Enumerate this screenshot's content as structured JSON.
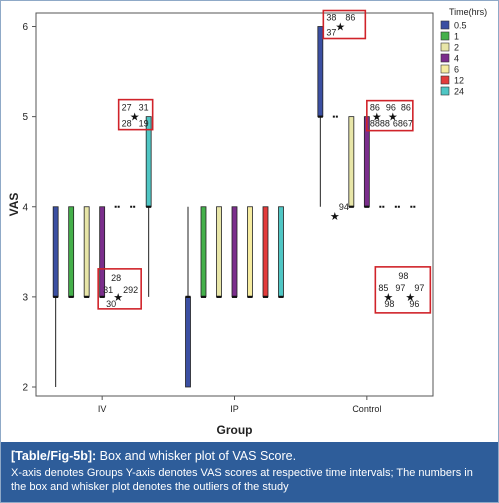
{
  "chart_data": {
    "type": "box",
    "xlabel": "Group",
    "ylabel": "VAS",
    "yticks": [
      2,
      3,
      4,
      5,
      6
    ],
    "ylim": [
      1.9,
      6.15
    ],
    "categories": [
      "IV",
      "IP",
      "Control"
    ],
    "legend": {
      "title": "Time(hrs)",
      "placement": "top-right",
      "items": [
        {
          "name": "0.5",
          "color": "#3b4fa2"
        },
        {
          "name": "1",
          "color": "#44b04a"
        },
        {
          "name": "2",
          "color": "#e8e6a8"
        },
        {
          "name": "4",
          "color": "#7b2e8c"
        },
        {
          "name": "6",
          "color": "#f6eca0"
        },
        {
          "name": "12",
          "color": "#e23b3b"
        },
        {
          "name": "24",
          "color": "#4fc6c4"
        }
      ]
    },
    "boxes": [
      {
        "group": "IV",
        "time": "0.5",
        "min": 2,
        "q1": 3,
        "median": 3,
        "q3": 4,
        "max": 4
      },
      {
        "group": "IV",
        "time": "1",
        "min": 3,
        "q1": 3,
        "median": 3,
        "q3": 4,
        "max": 4
      },
      {
        "group": "IV",
        "time": "2",
        "min": 3,
        "q1": 3,
        "median": 3,
        "q3": 4,
        "max": 4
      },
      {
        "group": "IV",
        "time": "4",
        "min": 3,
        "q1": 3,
        "median": 3,
        "q3": 4,
        "max": 4
      },
      {
        "group": "IV",
        "time": "6",
        "min": 4,
        "q1": 4,
        "median": 4,
        "q3": 4,
        "max": 4
      },
      {
        "group": "IV",
        "time": "12",
        "min": 4,
        "q1": 4,
        "median": 4,
        "q3": 4,
        "max": 4
      },
      {
        "group": "IV",
        "time": "24",
        "min": 3,
        "q1": 4,
        "median": 4,
        "q3": 5,
        "max": 5
      },
      {
        "group": "IP",
        "time": "0.5",
        "min": 2,
        "q1": 2,
        "median": 3,
        "q3": 3,
        "max": 4
      },
      {
        "group": "IP",
        "time": "1",
        "min": 3,
        "q1": 3,
        "median": 3,
        "q3": 4,
        "max": 4
      },
      {
        "group": "IP",
        "time": "2",
        "min": 3,
        "q1": 3,
        "median": 3,
        "q3": 4,
        "max": 4
      },
      {
        "group": "IP",
        "time": "4",
        "min": 3,
        "q1": 3,
        "median": 3,
        "q3": 4,
        "max": 4
      },
      {
        "group": "IP",
        "time": "6",
        "min": 3,
        "q1": 3,
        "median": 3,
        "q3": 4,
        "max": 4
      },
      {
        "group": "IP",
        "time": "12",
        "min": 3,
        "q1": 3,
        "median": 3,
        "q3": 4,
        "max": 4
      },
      {
        "group": "IP",
        "time": "24",
        "min": 3,
        "q1": 3,
        "median": 3,
        "q3": 4,
        "max": 4
      },
      {
        "group": "Control",
        "time": "0.5",
        "min": 4,
        "q1": 5,
        "median": 5,
        "q3": 6,
        "max": 6
      },
      {
        "group": "Control",
        "time": "1",
        "min": 5,
        "q1": 5,
        "median": 5,
        "q3": 5,
        "max": 5
      },
      {
        "group": "Control",
        "time": "2",
        "min": 4,
        "q1": 4,
        "median": 4,
        "q3": 5,
        "max": 5
      },
      {
        "group": "Control",
        "time": "4",
        "min": 4,
        "q1": 4,
        "median": 4,
        "q3": 5,
        "max": 5
      },
      {
        "group": "Control",
        "time": "6",
        "min": 4,
        "q1": 4,
        "median": 4,
        "q3": 4,
        "max": 4
      },
      {
        "group": "Control",
        "time": "12",
        "min": 4,
        "q1": 4,
        "median": 4,
        "q3": 4,
        "max": 4
      },
      {
        "group": "Control",
        "time": "24",
        "min": 4,
        "q1": 4,
        "median": 4,
        "q3": 4,
        "max": 4
      }
    ],
    "outliers": [
      {
        "group": "IV",
        "time": "4",
        "value": 3,
        "labels": [
          "28",
          "31",
          "292",
          "30"
        ]
      },
      {
        "group": "IV",
        "time": "24",
        "value": 5,
        "labels": [
          "27",
          "31",
          "28",
          "19"
        ]
      },
      {
        "group": "Control",
        "time": "0.5",
        "value": 6,
        "labels": [
          "38",
          "86",
          "37"
        ]
      },
      {
        "group": "Control",
        "time": "1",
        "value": 3.9,
        "labels": [
          "94"
        ]
      },
      {
        "group": "Control",
        "time": "4",
        "value": 5,
        "labels": [
          "86",
          "96",
          "86",
          "8888",
          "6867"
        ]
      },
      {
        "group": "Control",
        "time": "6",
        "value": 3,
        "labels": [
          "98",
          "85",
          "97",
          "97",
          "98",
          "96"
        ]
      }
    ]
  },
  "caption": {
    "tag": "[Table/Fig-5b]:",
    "title": "Box and whisker plot of VAS Score.",
    "note": "X-axis denotes Groups Y-axis denotes VAS scores at respective time intervals; The numbers in the box and whisker plot denotes the outliers of the study"
  }
}
